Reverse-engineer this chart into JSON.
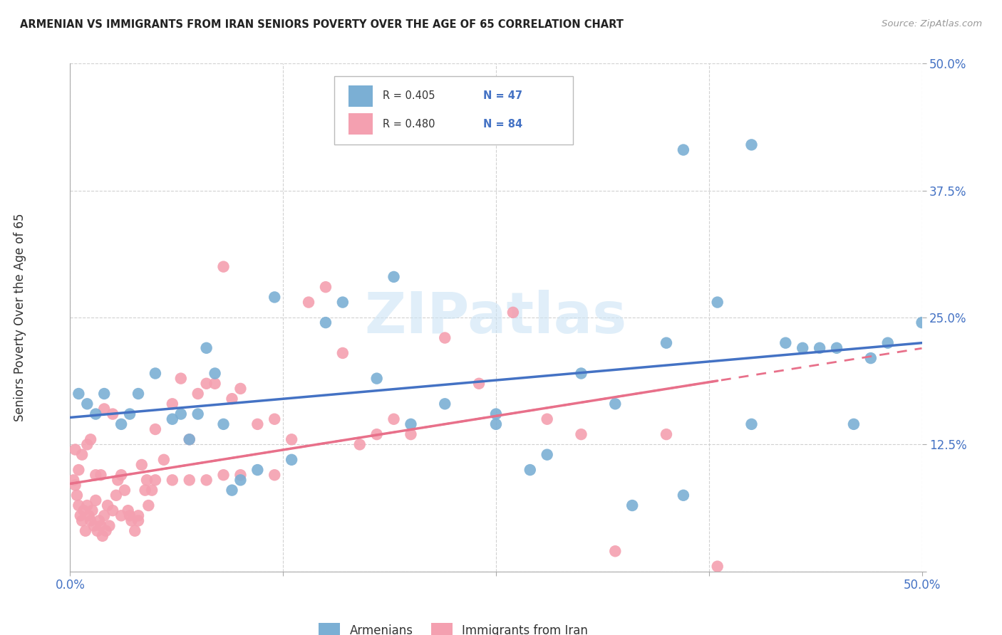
{
  "title": "ARMENIAN VS IMMIGRANTS FROM IRAN SENIORS POVERTY OVER THE AGE OF 65 CORRELATION CHART",
  "source": "Source: ZipAtlas.com",
  "ylabel": "Seniors Poverty Over the Age of 65",
  "xlim": [
    0,
    0.5
  ],
  "ylim": [
    0,
    0.5
  ],
  "xtick_positions": [
    0.0,
    0.125,
    0.25,
    0.375,
    0.5
  ],
  "ytick_positions": [
    0.0,
    0.125,
    0.25,
    0.375,
    0.5
  ],
  "xtick_labels": [
    "0.0%",
    "",
    "",
    "",
    "50.0%"
  ],
  "ytick_labels": [
    "",
    "12.5%",
    "25.0%",
    "37.5%",
    "50.0%"
  ],
  "armenian_color": "#7BAFD4",
  "iran_color": "#F4A0B0",
  "armenian_line_color": "#4472C4",
  "iran_line_color": "#E8708A",
  "armenian_R": 0.405,
  "armenian_N": 47,
  "iran_R": 0.48,
  "iran_N": 84,
  "watermark_text": "ZIPatlas",
  "background_color": "#ffffff",
  "grid_color": "#cccccc",
  "tick_label_color": "#4472C4",
  "armenians_x": [
    0.005,
    0.01,
    0.015,
    0.02,
    0.03,
    0.035,
    0.04,
    0.05,
    0.06,
    0.065,
    0.07,
    0.075,
    0.08,
    0.085,
    0.09,
    0.095,
    0.1,
    0.11,
    0.12,
    0.13,
    0.15,
    0.16,
    0.18,
    0.19,
    0.2,
    0.22,
    0.25,
    0.27,
    0.3,
    0.32,
    0.35,
    0.36,
    0.38,
    0.4,
    0.42,
    0.44,
    0.46,
    0.48,
    0.25,
    0.28,
    0.33,
    0.36,
    0.4,
    0.43,
    0.45,
    0.47,
    0.5
  ],
  "armenians_y": [
    0.175,
    0.165,
    0.155,
    0.175,
    0.145,
    0.155,
    0.175,
    0.195,
    0.15,
    0.155,
    0.13,
    0.155,
    0.22,
    0.195,
    0.145,
    0.08,
    0.09,
    0.1,
    0.27,
    0.11,
    0.245,
    0.265,
    0.19,
    0.29,
    0.145,
    0.165,
    0.155,
    0.1,
    0.195,
    0.165,
    0.225,
    0.415,
    0.265,
    0.42,
    0.225,
    0.22,
    0.145,
    0.225,
    0.145,
    0.115,
    0.065,
    0.075,
    0.145,
    0.22,
    0.22,
    0.21,
    0.245
  ],
  "iran_x": [
    0.002,
    0.003,
    0.004,
    0.005,
    0.006,
    0.007,
    0.008,
    0.009,
    0.01,
    0.011,
    0.012,
    0.013,
    0.014,
    0.015,
    0.016,
    0.017,
    0.018,
    0.019,
    0.02,
    0.021,
    0.022,
    0.023,
    0.025,
    0.027,
    0.028,
    0.03,
    0.032,
    0.034,
    0.036,
    0.038,
    0.04,
    0.042,
    0.044,
    0.046,
    0.048,
    0.05,
    0.055,
    0.06,
    0.065,
    0.07,
    0.075,
    0.08,
    0.085,
    0.09,
    0.095,
    0.1,
    0.11,
    0.12,
    0.13,
    0.14,
    0.15,
    0.16,
    0.17,
    0.18,
    0.19,
    0.2,
    0.22,
    0.24,
    0.26,
    0.28,
    0.3,
    0.32,
    0.35,
    0.38,
    0.003,
    0.005,
    0.007,
    0.01,
    0.012,
    0.015,
    0.018,
    0.02,
    0.025,
    0.03,
    0.035,
    0.04,
    0.045,
    0.05,
    0.06,
    0.07,
    0.08,
    0.09,
    0.1,
    0.12
  ],
  "iran_y": [
    0.09,
    0.085,
    0.075,
    0.065,
    0.055,
    0.05,
    0.06,
    0.04,
    0.065,
    0.055,
    0.05,
    0.06,
    0.045,
    0.07,
    0.04,
    0.05,
    0.045,
    0.035,
    0.055,
    0.04,
    0.065,
    0.045,
    0.06,
    0.075,
    0.09,
    0.055,
    0.08,
    0.06,
    0.05,
    0.04,
    0.05,
    0.105,
    0.08,
    0.065,
    0.08,
    0.14,
    0.11,
    0.165,
    0.19,
    0.13,
    0.175,
    0.185,
    0.185,
    0.3,
    0.17,
    0.18,
    0.145,
    0.15,
    0.13,
    0.265,
    0.28,
    0.215,
    0.125,
    0.135,
    0.15,
    0.135,
    0.23,
    0.185,
    0.255,
    0.15,
    0.135,
    0.02,
    0.135,
    0.005,
    0.12,
    0.1,
    0.115,
    0.125,
    0.13,
    0.095,
    0.095,
    0.16,
    0.155,
    0.095,
    0.055,
    0.055,
    0.09,
    0.09,
    0.09,
    0.09,
    0.09,
    0.095,
    0.095,
    0.095
  ]
}
